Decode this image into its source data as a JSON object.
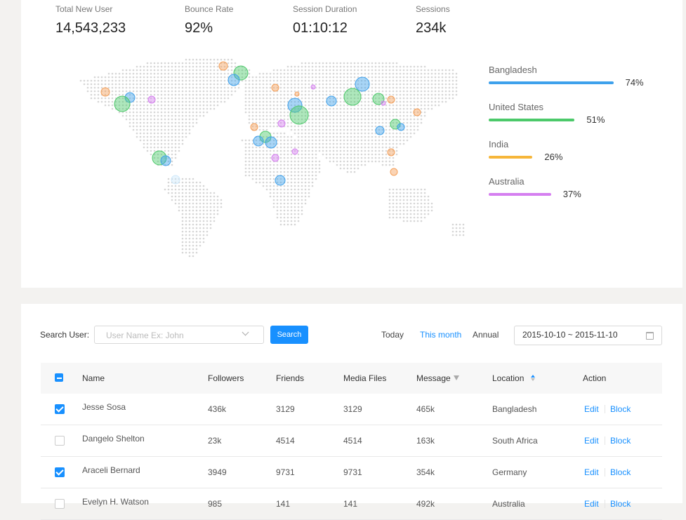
{
  "stats": [
    {
      "label": "Total New User",
      "value": "14,543,233"
    },
    {
      "label": "Bounce Rate",
      "value": "92%"
    },
    {
      "label": "Session Duration",
      "value": "01:10:12"
    },
    {
      "label": "Sessions",
      "value": "234k"
    }
  ],
  "countries": [
    {
      "name": "Bangladesh",
      "percent": 74,
      "label": "74%",
      "color": "#3ea1ec"
    },
    {
      "name": "United States",
      "percent": 51,
      "label": "51%",
      "color": "#4cc96a"
    },
    {
      "name": "India",
      "percent": 26,
      "label": "26%",
      "color": "#f6b63a"
    },
    {
      "name": "Australia",
      "percent": 37,
      "label": "37%",
      "color": "#d57ff0"
    }
  ],
  "search": {
    "label": "Search User:",
    "placeholder": "User Name Ex: John",
    "button": "Search",
    "periods": [
      "Today",
      "This month",
      "Annual"
    ],
    "active_period": 1,
    "date_range": "2015-10-10 ~ 2015-11-10"
  },
  "table": {
    "columns": [
      "Name",
      "Followers",
      "Friends",
      "Media Files",
      "Message",
      "Location",
      "Action"
    ],
    "rows": [
      [
        "Jesse Sosa",
        "436k",
        "3129",
        "3129",
        "465k",
        "Bangladesh"
      ],
      [
        "Dangelo Shelton",
        "23k",
        "4514",
        "4514",
        "163k",
        "South Africa"
      ],
      [
        "Araceli Bernard",
        "3949",
        "9731",
        "9731",
        "354k",
        "Germany"
      ],
      [
        "Evelyn H. Watson",
        "985",
        "141",
        "141",
        "492k",
        "Australia"
      ]
    ],
    "checked": [
      true,
      false,
      true,
      false
    ],
    "actions": [
      "Edit",
      "Block"
    ]
  }
}
